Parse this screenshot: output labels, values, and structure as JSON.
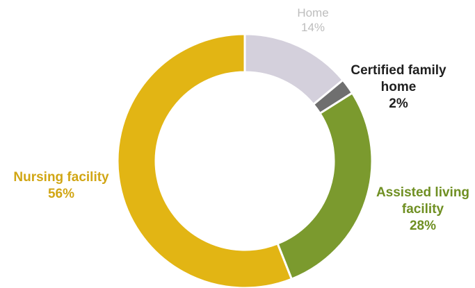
{
  "chart_data": {
    "type": "pie",
    "donut": true,
    "start_angle_deg": 0,
    "slices": [
      {
        "label": "Home",
        "value": 14,
        "pct_label": "14%",
        "color": "#d4d0dc",
        "label_color": "#bdbdbd"
      },
      {
        "label": "Certified family home",
        "value": 2,
        "pct_label": "2%",
        "color": "#6f6f6f",
        "label_color": "#1f1f1f"
      },
      {
        "label": "Assisted living facility",
        "value": 28,
        "pct_label": "28%",
        "color": "#7b9a2e",
        "label_color": "#6f8f22"
      },
      {
        "label": "Nursing facility",
        "value": 56,
        "pct_label": "56%",
        "color": "#e2b514",
        "label_color": "#d1a614"
      }
    ]
  },
  "labels": {
    "home": {
      "line1": "Home",
      "pct": "14%"
    },
    "cert": {
      "line1": "Certified family",
      "line2": "home",
      "pct": "2%"
    },
    "assisted": {
      "line1": "Assisted living",
      "line2": "facility",
      "pct": "28%"
    },
    "nursing": {
      "line1": "Nursing facility",
      "pct": "56%"
    }
  }
}
